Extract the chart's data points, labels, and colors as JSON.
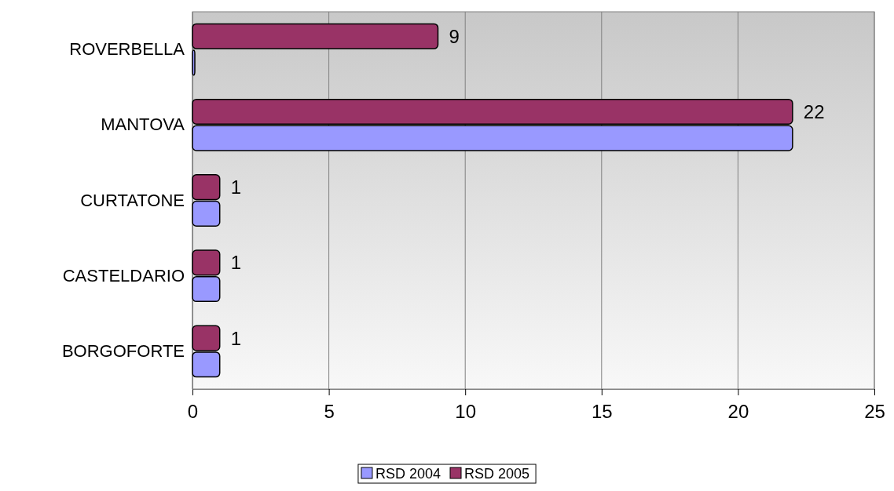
{
  "chart_data": {
    "type": "bar",
    "orientation": "horizontal",
    "categories": [
      "ROVERBELLA",
      "MANTOVA",
      "CURTATONE",
      "CASTELDARIO",
      "BORGOFORTE"
    ],
    "series": [
      {
        "name": "RSD 2004",
        "color": "#9999ff",
        "values": [
          0,
          22,
          1,
          1,
          1
        ]
      },
      {
        "name": "RSD 2005",
        "color": "#993366",
        "values": [
          9,
          22,
          1,
          1,
          1
        ],
        "value_labels": [
          "9",
          "22",
          "1",
          "1",
          "1"
        ]
      }
    ],
    "xlim": [
      0,
      25
    ],
    "xticks": [
      0,
      5,
      10,
      15,
      20,
      25
    ],
    "grid": "x",
    "legend": "bottom"
  }
}
